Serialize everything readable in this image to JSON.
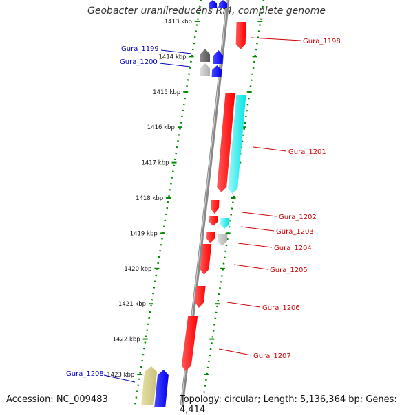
{
  "title": "Geobacter uraniireducens Rf4, complete genome",
  "accession": "Accession: NC_009483",
  "topology": "Topology: circular; Length: 5,136,364 bp; Genes: 4,414",
  "colors": {
    "forward_gene": "#ff0000",
    "rna": "#00e5e5",
    "pseudo": "#b0b0b0",
    "reverse_gene": "#0000ee",
    "reverse_dark": "#555555",
    "reverse_olive": "#c8c07a",
    "forward_label": "#cc0000",
    "reverse_label": "#0000bb",
    "backbone": "#888888",
    "tick": "#008800"
  },
  "ticks": [
    "1413 kbp",
    "1414 kbp",
    "1415 kbp",
    "1416 kbp",
    "1417 kbp",
    "1418 kbp",
    "1419 kbp",
    "1420 kbp",
    "1421 kbp",
    "1422 kbp",
    "1423 kbp"
  ],
  "forward_labels": [
    "Gura_1198",
    "Gura_1201",
    "Gura_1202",
    "Gura_1203",
    "Gura_1204",
    "Gura_1205",
    "Gura_1206",
    "Gura_1207"
  ],
  "reverse_labels": [
    "Gura_1199",
    "Gura_1200",
    "Gura_1208"
  ]
}
